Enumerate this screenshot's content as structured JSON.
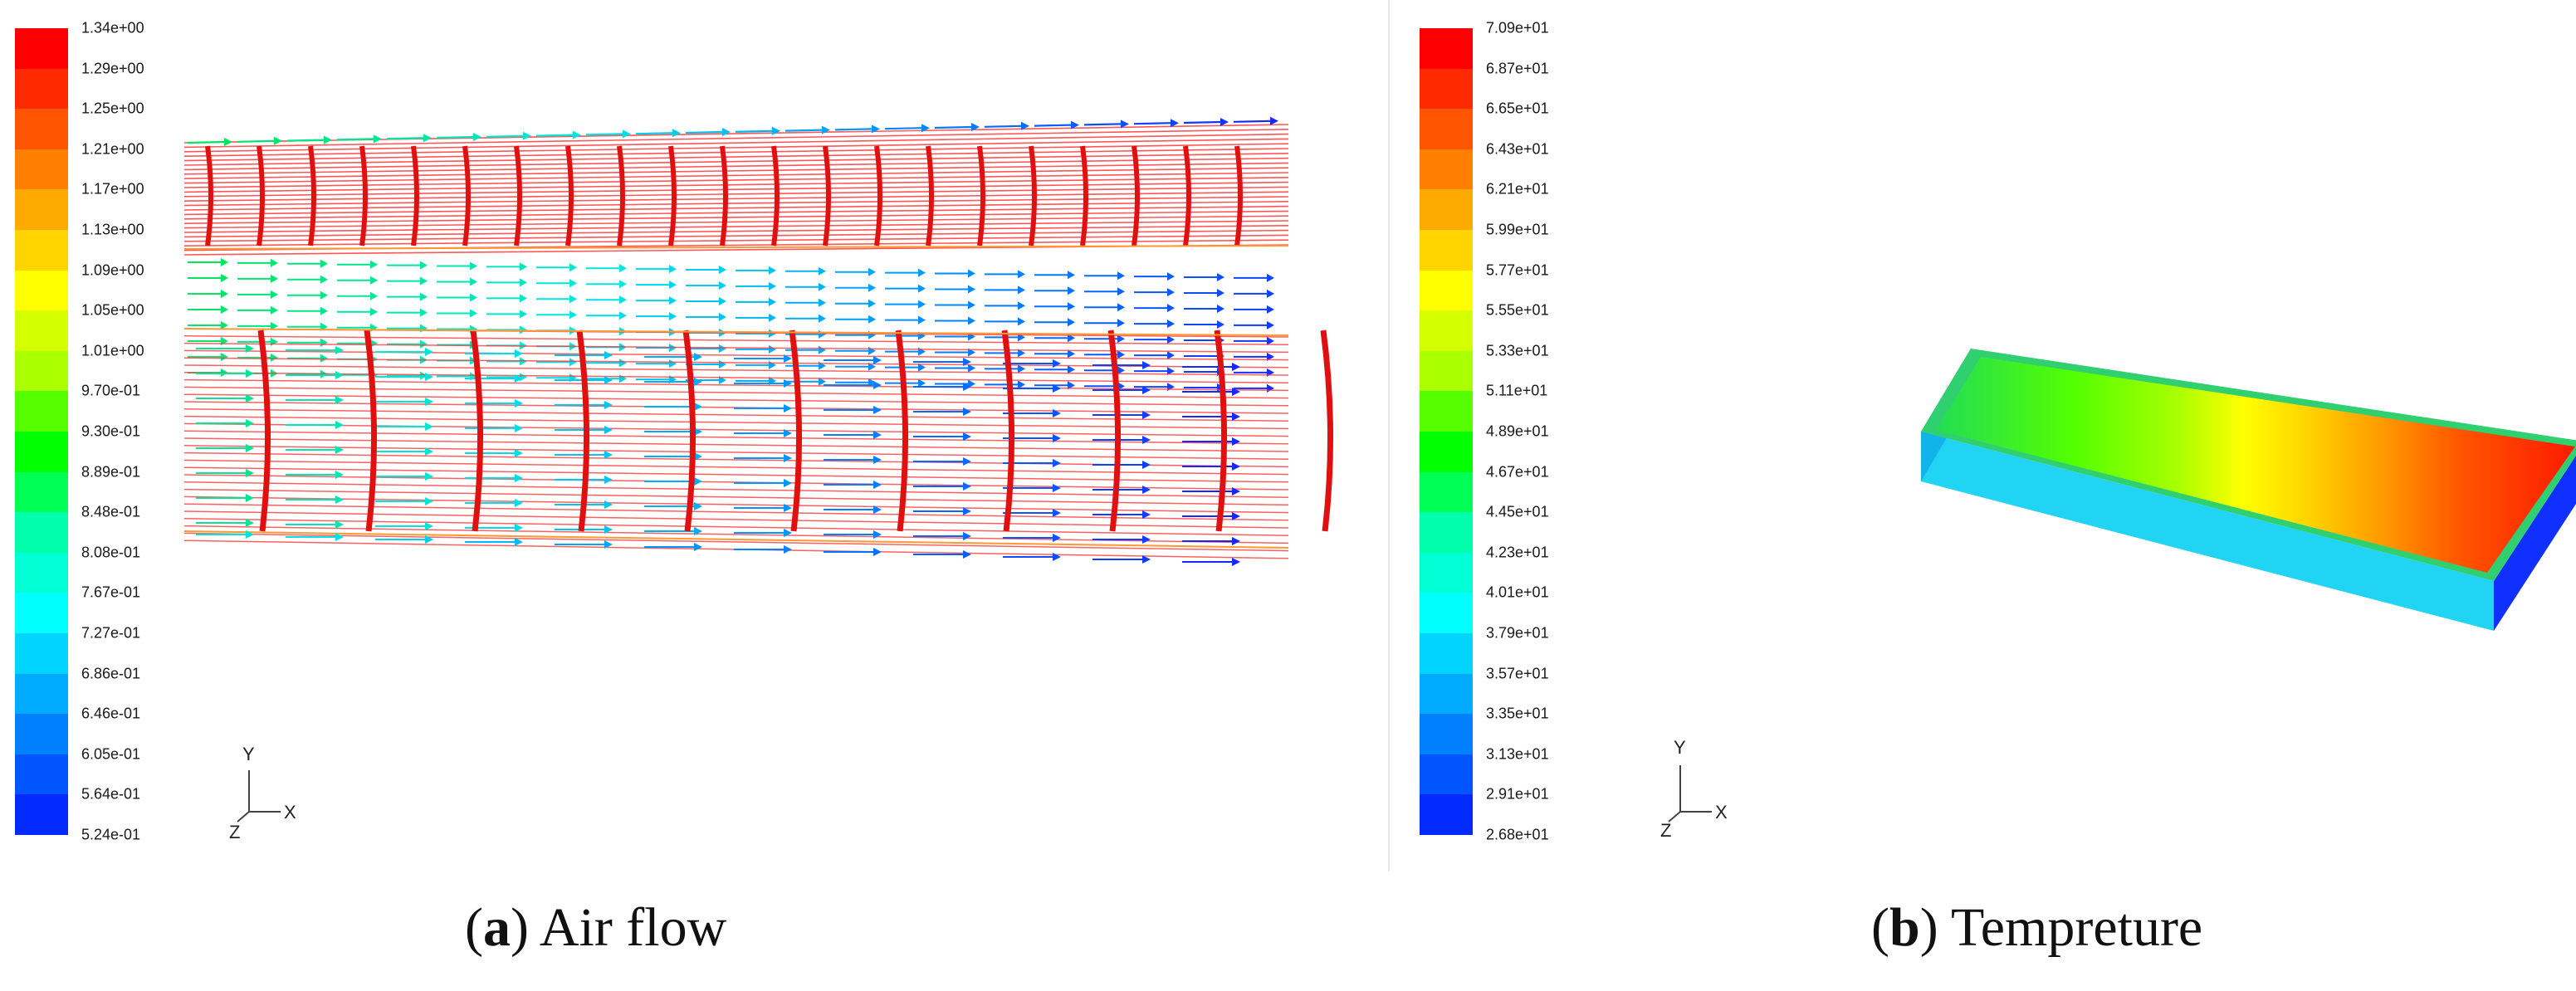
{
  "panel_a": {
    "legend": {
      "labels": [
        "1.34e+00",
        "1.29e+00",
        "1.25e+00",
        "1.21e+00",
        "1.17e+00",
        "1.13e+00",
        "1.09e+00",
        "1.05e+00",
        "1.01e+00",
        "9.70e-01",
        "9.30e-01",
        "8.89e-01",
        "8.48e-01",
        "8.08e-01",
        "7.67e-01",
        "7.27e-01",
        "6.86e-01",
        "6.46e-01",
        "6.05e-01",
        "5.64e-01",
        "5.24e-01"
      ],
      "colors": [
        "#ff0000",
        "#ff2a00",
        "#ff5500",
        "#ff8000",
        "#ffaa00",
        "#ffd400",
        "#ffff00",
        "#d4ff00",
        "#aaff00",
        "#55ff00",
        "#00ff00",
        "#00ff55",
        "#00ffaa",
        "#00ffd4",
        "#00ffff",
        "#00d4ff",
        "#00aaff",
        "#0080ff",
        "#0055ff",
        "#002aff"
      ]
    },
    "axes": {
      "y": "Y",
      "x": "X",
      "z": "Z"
    },
    "caption": {
      "letter": "a",
      "text": "Air flow"
    }
  },
  "panel_b": {
    "legend": {
      "labels": [
        "7.09e+01",
        "6.87e+01",
        "6.65e+01",
        "6.43e+01",
        "6.21e+01",
        "5.99e+01",
        "5.77e+01",
        "5.55e+01",
        "5.33e+01",
        "5.11e+01",
        "4.89e+01",
        "4.67e+01",
        "4.45e+01",
        "4.23e+01",
        "4.01e+01",
        "3.79e+01",
        "3.57e+01",
        "3.35e+01",
        "3.13e+01",
        "2.91e+01",
        "2.68e+01"
      ],
      "colors": [
        "#ff0000",
        "#ff2a00",
        "#ff5500",
        "#ff8000",
        "#ffaa00",
        "#ffd400",
        "#ffff00",
        "#d4ff00",
        "#aaff00",
        "#55ff00",
        "#00ff00",
        "#00ff55",
        "#00ffaa",
        "#00ffd4",
        "#00ffff",
        "#00d4ff",
        "#00aaff",
        "#0080ff",
        "#0055ff",
        "#002aff"
      ]
    },
    "axes": {
      "y": "Y",
      "x": "X",
      "z": "Z"
    },
    "caption": {
      "letter": "b",
      "text": "Tempreture"
    }
  }
}
